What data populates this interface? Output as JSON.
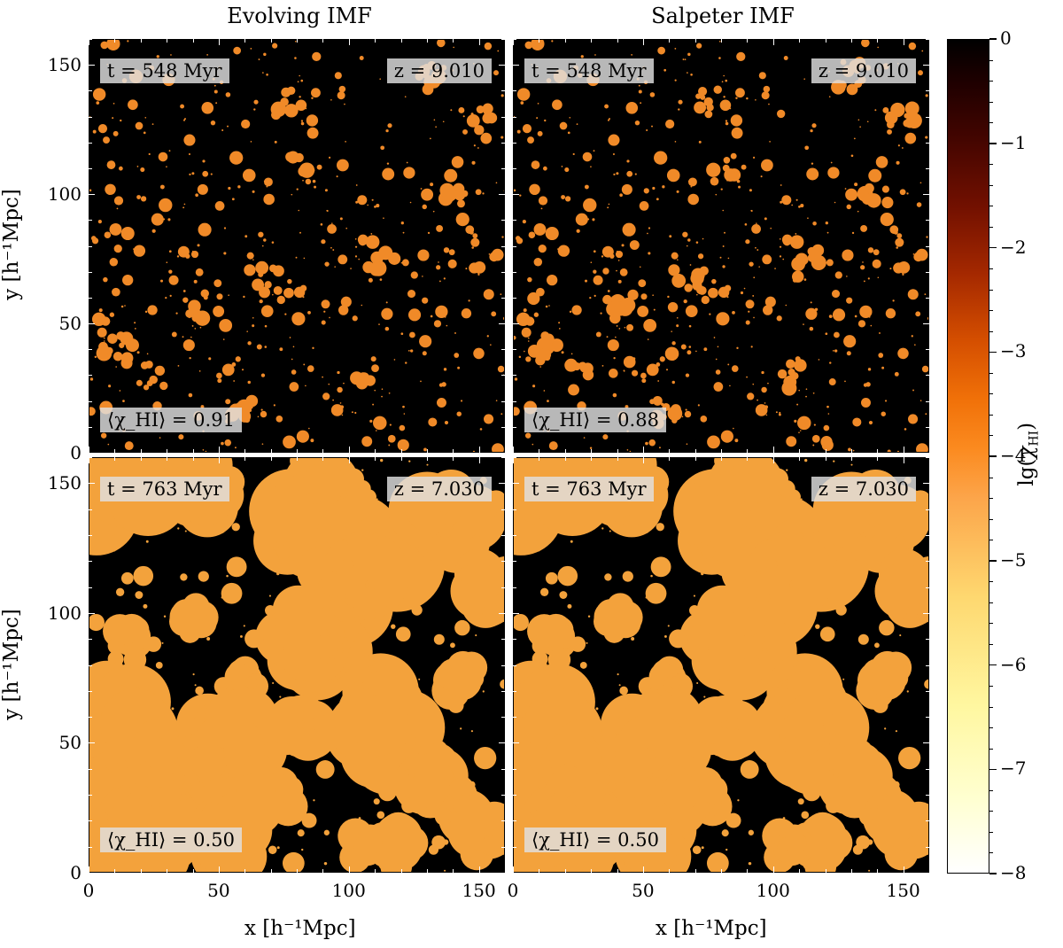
{
  "figure": {
    "col_titles": [
      "Evolving  IMF",
      "Salpeter  IMF"
    ],
    "ylabel": "y [h⁻¹Mpc]",
    "xlabel": "x [h⁻¹Mpc]",
    "colorbar_label": "lg(χ_HI)",
    "colorbar_ticks": [
      "0",
      "−1",
      "−2",
      "−3",
      "−4",
      "−5",
      "−6",
      "−7",
      "−8"
    ],
    "x_ticks": [
      "0",
      "50",
      "100",
      "150"
    ],
    "y_ticks": [
      "0",
      "50",
      "100",
      "150"
    ]
  },
  "chart_data": [
    {
      "type": "heatmap",
      "panel": "top-left",
      "title": "Evolving  IMF",
      "time_label": "t = 548 Myr",
      "redshift_label": "z = 9.010",
      "mean_label": "⟨χ_HI⟩ = 0.91",
      "t_myr": 548,
      "z": 9.01,
      "mean_xHI": 0.91,
      "xlim": [
        0,
        160
      ],
      "ylim": [
        0,
        160
      ],
      "colorbar_range": [
        -8,
        0
      ]
    },
    {
      "type": "heatmap",
      "panel": "top-right",
      "title": "Salpeter  IMF",
      "time_label": "t = 548 Myr",
      "redshift_label": "z = 9.010",
      "mean_label": "⟨χ_HI⟩ = 0.88",
      "t_myr": 548,
      "z": 9.01,
      "mean_xHI": 0.88,
      "xlim": [
        0,
        160
      ],
      "ylim": [
        0,
        160
      ],
      "colorbar_range": [
        -8,
        0
      ]
    },
    {
      "type": "heatmap",
      "panel": "bottom-left",
      "title": "",
      "time_label": "t = 763 Myr",
      "redshift_label": "z = 7.030",
      "mean_label": "⟨χ_HI⟩ = 0.50",
      "t_myr": 763,
      "z": 7.03,
      "mean_xHI": 0.5,
      "xlim": [
        0,
        160
      ],
      "ylim": [
        0,
        160
      ],
      "colorbar_range": [
        -8,
        0
      ]
    },
    {
      "type": "heatmap",
      "panel": "bottom-right",
      "title": "",
      "time_label": "t = 763 Myr",
      "redshift_label": "z = 7.030",
      "mean_label": "⟨χ_HI⟩ = 0.50",
      "t_myr": 763,
      "z": 7.03,
      "mean_xHI": 0.5,
      "xlim": [
        0,
        160
      ],
      "ylim": [
        0,
        160
      ],
      "colorbar_range": [
        -8,
        0
      ]
    }
  ],
  "colors": {
    "ionized": "#f3a23c",
    "ionized_small": "#f08a28",
    "neutral": "#000000"
  }
}
